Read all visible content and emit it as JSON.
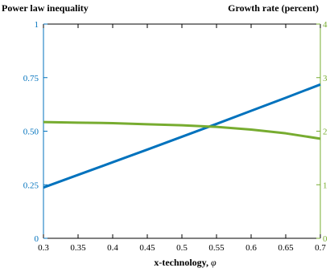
{
  "chart_data": {
    "type": "line",
    "x": [
      0.3,
      0.35,
      0.4,
      0.45,
      0.5,
      0.55,
      0.6,
      0.65,
      0.7
    ],
    "xlim": [
      0.3,
      0.7
    ],
    "xticks": [
      "0.3",
      "0.35",
      "0.4",
      "0.45",
      "0.5",
      "0.55",
      "0.6",
      "0.65",
      "0.7"
    ],
    "xlabel": {
      "text": "x-technology, ",
      "symbol": "φ"
    },
    "ylabel_left": "Power law inequality",
    "ylabel_right": "Growth rate (percent)",
    "ylim_left": [
      0,
      1
    ],
    "ylim_right": [
      0,
      4
    ],
    "yticks_left": [
      "0",
      "0.25",
      "0.50",
      "0.75",
      "1"
    ],
    "yticks_right": [
      "0",
      "1",
      "2",
      "3",
      "4"
    ],
    "grid": false,
    "series": [
      {
        "axis": "left",
        "color": "#0072BD",
        "values": [
          0.237,
          0.296,
          0.355,
          0.414,
          0.474,
          0.534,
          0.595,
          0.656,
          0.718
        ]
      },
      {
        "axis": "right",
        "color": "#77AC30",
        "values": [
          2.17,
          2.16,
          2.15,
          2.13,
          2.11,
          2.08,
          2.03,
          1.96,
          1.86
        ]
      }
    ],
    "colors": {
      "left_axis": "#0072BD",
      "right_axis": "#77AC30",
      "x_axis": "#000000",
      "x_tick_labels": "#000000"
    }
  }
}
